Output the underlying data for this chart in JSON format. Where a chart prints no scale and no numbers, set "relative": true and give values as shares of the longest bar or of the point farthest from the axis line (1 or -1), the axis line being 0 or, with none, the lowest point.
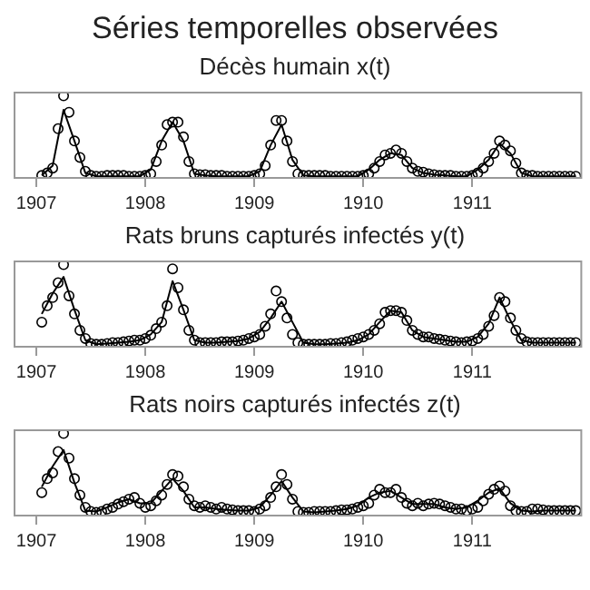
{
  "chart_data": [
    {
      "type": "scatter",
      "title": "Séries temporelles observées",
      "subtitle": "Décès humain x(t)",
      "relative": true,
      "tick_labels": "x",
      "grid": false,
      "legend": false,
      "xlim": [
        1906.8,
        1912.0
      ],
      "xticks": [
        1907,
        1908,
        1909,
        1910,
        1911
      ],
      "x": [
        1907.05,
        1907.1,
        1907.15,
        1907.2,
        1907.25,
        1907.3,
        1907.35,
        1907.4,
        1907.45,
        1907.5,
        1907.55,
        1907.6,
        1907.65,
        1907.7,
        1907.75,
        1907.8,
        1907.85,
        1907.9,
        1907.95,
        1908.0,
        1908.05,
        1908.1,
        1908.15,
        1908.2,
        1908.25,
        1908.3,
        1908.35,
        1908.4,
        1908.45,
        1908.5,
        1908.55,
        1908.6,
        1908.65,
        1908.7,
        1908.75,
        1908.8,
        1908.85,
        1908.9,
        1908.95,
        1909.0,
        1909.05,
        1909.1,
        1909.15,
        1909.2,
        1909.25,
        1909.3,
        1909.35,
        1909.4,
        1909.45,
        1909.5,
        1909.55,
        1909.6,
        1909.65,
        1909.7,
        1909.75,
        1909.8,
        1909.85,
        1909.9,
        1909.95,
        1910.0,
        1910.05,
        1910.1,
        1910.15,
        1910.2,
        1910.25,
        1910.3,
        1910.35,
        1910.4,
        1910.45,
        1910.5,
        1910.55,
        1910.6,
        1910.65,
        1910.7,
        1910.75,
        1910.8,
        1910.85,
        1910.9,
        1910.95,
        1911.0,
        1911.05,
        1911.1,
        1911.15,
        1911.2,
        1911.25,
        1911.3,
        1911.35,
        1911.4,
        1911.45,
        1911.5,
        1911.55,
        1911.6,
        1911.65,
        1911.7,
        1911.75,
        1911.8,
        1911.85,
        1911.9,
        1911.95
      ],
      "series": [
        {
          "type": "scatter",
          "marker": "circle",
          "color": "#000000",
          "values": [
            0.03,
            0.06,
            0.12,
            0.6,
            1.0,
            0.8,
            0.45,
            0.25,
            0.08,
            0.03,
            0.02,
            0.02,
            0.03,
            0.03,
            0.03,
            0.03,
            0.02,
            0.02,
            0.02,
            0.03,
            0.05,
            0.2,
            0.4,
            0.65,
            0.68,
            0.68,
            0.5,
            0.2,
            0.05,
            0.04,
            0.04,
            0.03,
            0.03,
            0.03,
            0.02,
            0.02,
            0.02,
            0.02,
            0.02,
            0.03,
            0.05,
            0.15,
            0.4,
            0.7,
            0.7,
            0.45,
            0.2,
            0.05,
            0.03,
            0.03,
            0.03,
            0.03,
            0.03,
            0.02,
            0.02,
            0.02,
            0.02,
            0.02,
            0.02,
            0.03,
            0.05,
            0.12,
            0.2,
            0.28,
            0.3,
            0.34,
            0.3,
            0.2,
            0.12,
            0.08,
            0.07,
            0.05,
            0.04,
            0.03,
            0.03,
            0.03,
            0.02,
            0.02,
            0.02,
            0.03,
            0.06,
            0.12,
            0.2,
            0.3,
            0.45,
            0.4,
            0.33,
            0.18,
            0.06,
            0.03,
            0.03,
            0.02,
            0.02,
            0.02,
            0.02,
            0.02,
            0.02,
            0.02,
            0.02
          ]
        },
        {
          "type": "line",
          "marker": "none",
          "color": "#000000",
          "x": [
            1907.05,
            1907.15,
            1907.25,
            1907.35,
            1907.45,
            1907.55,
            1907.65,
            1907.75,
            1907.85,
            1907.95,
            1908.05,
            1908.15,
            1908.25,
            1908.35,
            1908.45,
            1908.55,
            1908.65,
            1908.75,
            1908.85,
            1908.95,
            1909.05,
            1909.15,
            1909.25,
            1909.35,
            1909.45,
            1909.55,
            1909.65,
            1909.75,
            1909.85,
            1909.95,
            1910.05,
            1910.15,
            1910.25,
            1910.35,
            1910.45,
            1910.55,
            1910.65,
            1910.75,
            1910.85,
            1910.95,
            1911.05,
            1911.15,
            1911.25,
            1911.35,
            1911.45,
            1911.55,
            1911.65,
            1911.75,
            1911.85,
            1911.95
          ],
          "values": [
            0.03,
            0.15,
            0.83,
            0.45,
            0.06,
            0.02,
            0.02,
            0.02,
            0.02,
            0.02,
            0.1,
            0.45,
            0.68,
            0.45,
            0.05,
            0.03,
            0.02,
            0.02,
            0.02,
            0.02,
            0.08,
            0.4,
            0.65,
            0.22,
            0.03,
            0.02,
            0.02,
            0.02,
            0.02,
            0.02,
            0.1,
            0.22,
            0.3,
            0.28,
            0.12,
            0.06,
            0.04,
            0.03,
            0.02,
            0.02,
            0.1,
            0.22,
            0.42,
            0.3,
            0.06,
            0.02,
            0.02,
            0.02,
            0.02,
            0.02
          ]
        }
      ]
    },
    {
      "type": "scatter",
      "title": "Rats bruns capturés infectés y(t)",
      "relative": true,
      "tick_labels": "x",
      "grid": false,
      "legend": false,
      "xlim": [
        1906.8,
        1912.0
      ],
      "xticks": [
        1907,
        1908,
        1909,
        1910,
        1911
      ],
      "x": [
        1907.05,
        1907.1,
        1907.15,
        1907.2,
        1907.25,
        1907.3,
        1907.35,
        1907.4,
        1907.45,
        1907.5,
        1907.55,
        1907.6,
        1907.65,
        1907.7,
        1907.75,
        1907.8,
        1907.85,
        1907.9,
        1907.95,
        1908.0,
        1908.05,
        1908.1,
        1908.15,
        1908.2,
        1908.25,
        1908.3,
        1908.35,
        1908.4,
        1908.45,
        1908.5,
        1908.55,
        1908.6,
        1908.65,
        1908.7,
        1908.75,
        1908.8,
        1908.85,
        1908.9,
        1908.95,
        1909.0,
        1909.05,
        1909.1,
        1909.15,
        1909.2,
        1909.25,
        1909.3,
        1909.35,
        1909.4,
        1909.45,
        1909.5,
        1909.55,
        1909.6,
        1909.65,
        1909.7,
        1909.75,
        1909.8,
        1909.85,
        1909.9,
        1909.95,
        1910.0,
        1910.05,
        1910.1,
        1910.15,
        1910.2,
        1910.25,
        1910.3,
        1910.35,
        1910.4,
        1910.45,
        1910.5,
        1910.55,
        1910.6,
        1910.65,
        1910.7,
        1910.75,
        1910.8,
        1910.85,
        1910.9,
        1910.95,
        1911.0,
        1911.05,
        1911.1,
        1911.15,
        1911.2,
        1911.25,
        1911.3,
        1911.35,
        1911.4,
        1911.45,
        1911.5,
        1911.55,
        1911.6,
        1911.65,
        1911.7,
        1911.75,
        1911.8,
        1911.85,
        1911.9,
        1911.95
      ],
      "series": [
        {
          "type": "scatter",
          "marker": "circle",
          "color": "#000000",
          "values": [
            0.3,
            0.5,
            0.6,
            0.78,
            1.0,
            0.62,
            0.4,
            0.2,
            0.1,
            0.04,
            0.03,
            0.03,
            0.04,
            0.05,
            0.05,
            0.06,
            0.07,
            0.08,
            0.08,
            0.1,
            0.14,
            0.22,
            0.3,
            0.5,
            0.95,
            0.72,
            0.45,
            0.2,
            0.08,
            0.05,
            0.05,
            0.05,
            0.05,
            0.06,
            0.06,
            0.06,
            0.07,
            0.08,
            0.1,
            0.12,
            0.15,
            0.25,
            0.4,
            0.68,
            0.55,
            0.35,
            0.15,
            0.05,
            0.03,
            0.03,
            0.03,
            0.03,
            0.03,
            0.04,
            0.04,
            0.05,
            0.06,
            0.08,
            0.1,
            0.12,
            0.15,
            0.2,
            0.28,
            0.42,
            0.44,
            0.44,
            0.42,
            0.32,
            0.2,
            0.15,
            0.12,
            0.12,
            0.1,
            0.09,
            0.08,
            0.07,
            0.06,
            0.05,
            0.06,
            0.07,
            0.1,
            0.15,
            0.25,
            0.38,
            0.6,
            0.55,
            0.35,
            0.2,
            0.1,
            0.06,
            0.05,
            0.05,
            0.05,
            0.05,
            0.05,
            0.05,
            0.05,
            0.05,
            0.05
          ]
        },
        {
          "type": "line",
          "marker": "none",
          "color": "#000000",
          "x": [
            1907.05,
            1907.15,
            1907.25,
            1907.35,
            1907.45,
            1907.55,
            1907.65,
            1907.75,
            1907.85,
            1907.95,
            1908.05,
            1908.15,
            1908.25,
            1908.35,
            1908.45,
            1908.55,
            1908.65,
            1908.75,
            1908.85,
            1908.95,
            1909.05,
            1909.15,
            1909.25,
            1909.35,
            1909.45,
            1909.55,
            1909.65,
            1909.75,
            1909.85,
            1909.95,
            1910.05,
            1910.15,
            1910.25,
            1910.35,
            1910.45,
            1910.55,
            1910.65,
            1910.75,
            1910.85,
            1910.95,
            1911.05,
            1911.15,
            1911.25,
            1911.35,
            1911.45,
            1911.55,
            1911.65,
            1911.75,
            1911.85,
            1911.95
          ],
          "values": [
            0.4,
            0.65,
            0.85,
            0.45,
            0.08,
            0.03,
            0.04,
            0.05,
            0.06,
            0.08,
            0.15,
            0.3,
            0.8,
            0.45,
            0.08,
            0.05,
            0.05,
            0.06,
            0.07,
            0.1,
            0.18,
            0.35,
            0.55,
            0.3,
            0.05,
            0.03,
            0.03,
            0.04,
            0.05,
            0.08,
            0.15,
            0.3,
            0.44,
            0.42,
            0.2,
            0.12,
            0.1,
            0.08,
            0.06,
            0.06,
            0.12,
            0.28,
            0.6,
            0.32,
            0.08,
            0.05,
            0.05,
            0.05,
            0.05,
            0.05
          ]
        }
      ]
    },
    {
      "type": "scatter",
      "title": "Rats noirs capturés infectés z(t)",
      "relative": true,
      "tick_labels": "x",
      "grid": false,
      "legend": false,
      "xlim": [
        1906.8,
        1912.0
      ],
      "xticks": [
        1907,
        1908,
        1909,
        1910,
        1911
      ],
      "x": [
        1907.05,
        1907.1,
        1907.15,
        1907.2,
        1907.25,
        1907.3,
        1907.35,
        1907.4,
        1907.45,
        1907.5,
        1907.55,
        1907.6,
        1907.65,
        1907.7,
        1907.75,
        1907.8,
        1907.85,
        1907.9,
        1907.95,
        1908.0,
        1908.05,
        1908.1,
        1908.15,
        1908.2,
        1908.25,
        1908.3,
        1908.35,
        1908.4,
        1908.45,
        1908.5,
        1908.55,
        1908.6,
        1908.65,
        1908.7,
        1908.75,
        1908.8,
        1908.85,
        1908.9,
        1908.95,
        1909.0,
        1909.05,
        1909.1,
        1909.15,
        1909.2,
        1909.25,
        1909.3,
        1909.35,
        1909.4,
        1909.45,
        1909.5,
        1909.55,
        1909.6,
        1909.65,
        1909.7,
        1909.75,
        1909.8,
        1909.85,
        1909.9,
        1909.95,
        1910.0,
        1910.05,
        1910.1,
        1910.15,
        1910.2,
        1910.25,
        1910.3,
        1910.35,
        1910.4,
        1910.45,
        1910.5,
        1910.55,
        1910.6,
        1910.65,
        1910.7,
        1910.75,
        1910.8,
        1910.85,
        1910.9,
        1910.95,
        1911.0,
        1911.05,
        1911.1,
        1911.15,
        1911.2,
        1911.25,
        1911.3,
        1911.35,
        1911.4,
        1911.45,
        1911.5,
        1911.55,
        1911.6,
        1911.65,
        1911.7,
        1911.75,
        1911.8,
        1911.85,
        1911.9,
        1911.95
      ],
      "series": [
        {
          "type": "scatter",
          "marker": "circle",
          "color": "#000000",
          "values": [
            0.28,
            0.45,
            0.52,
            0.78,
            1.0,
            0.7,
            0.45,
            0.25,
            0.1,
            0.05,
            0.04,
            0.05,
            0.08,
            0.1,
            0.14,
            0.17,
            0.2,
            0.22,
            0.15,
            0.1,
            0.12,
            0.18,
            0.25,
            0.38,
            0.5,
            0.48,
            0.35,
            0.2,
            0.12,
            0.1,
            0.12,
            0.1,
            0.08,
            0.1,
            0.08,
            0.07,
            0.06,
            0.06,
            0.06,
            0.05,
            0.08,
            0.12,
            0.22,
            0.35,
            0.5,
            0.38,
            0.2,
            0.05,
            0.04,
            0.04,
            0.05,
            0.05,
            0.05,
            0.05,
            0.06,
            0.07,
            0.07,
            0.08,
            0.1,
            0.12,
            0.15,
            0.25,
            0.32,
            0.28,
            0.28,
            0.32,
            0.22,
            0.15,
            0.12,
            0.15,
            0.12,
            0.14,
            0.15,
            0.14,
            0.12,
            0.1,
            0.08,
            0.08,
            0.06,
            0.08,
            0.1,
            0.18,
            0.26,
            0.32,
            0.36,
            0.3,
            0.12,
            0.06,
            0.05,
            0.05,
            0.08,
            0.08,
            0.07,
            0.06,
            0.06,
            0.06,
            0.06,
            0.06,
            0.06
          ]
        },
        {
          "type": "line",
          "marker": "none",
          "color": "#000000",
          "x": [
            1907.05,
            1907.15,
            1907.25,
            1907.35,
            1907.45,
            1907.55,
            1907.65,
            1907.75,
            1907.85,
            1907.95,
            1908.05,
            1908.15,
            1908.25,
            1908.35,
            1908.45,
            1908.55,
            1908.65,
            1908.75,
            1908.85,
            1908.95,
            1909.05,
            1909.15,
            1909.25,
            1909.35,
            1909.45,
            1909.55,
            1909.65,
            1909.75,
            1909.85,
            1909.95,
            1910.05,
            1910.15,
            1910.25,
            1910.35,
            1910.45,
            1910.55,
            1910.65,
            1910.75,
            1910.85,
            1910.95,
            1911.05,
            1911.15,
            1911.25,
            1911.35,
            1911.45,
            1911.55,
            1911.65,
            1911.75,
            1911.85,
            1911.95
          ],
          "values": [
            0.35,
            0.6,
            0.8,
            0.4,
            0.06,
            0.05,
            0.1,
            0.16,
            0.2,
            0.15,
            0.15,
            0.3,
            0.45,
            0.3,
            0.1,
            0.1,
            0.08,
            0.07,
            0.06,
            0.06,
            0.1,
            0.25,
            0.42,
            0.22,
            0.05,
            0.04,
            0.05,
            0.06,
            0.08,
            0.12,
            0.22,
            0.28,
            0.3,
            0.22,
            0.14,
            0.14,
            0.14,
            0.1,
            0.08,
            0.1,
            0.18,
            0.28,
            0.33,
            0.15,
            0.06,
            0.05,
            0.06,
            0.06,
            0.06,
            0.06
          ]
        }
      ]
    }
  ]
}
